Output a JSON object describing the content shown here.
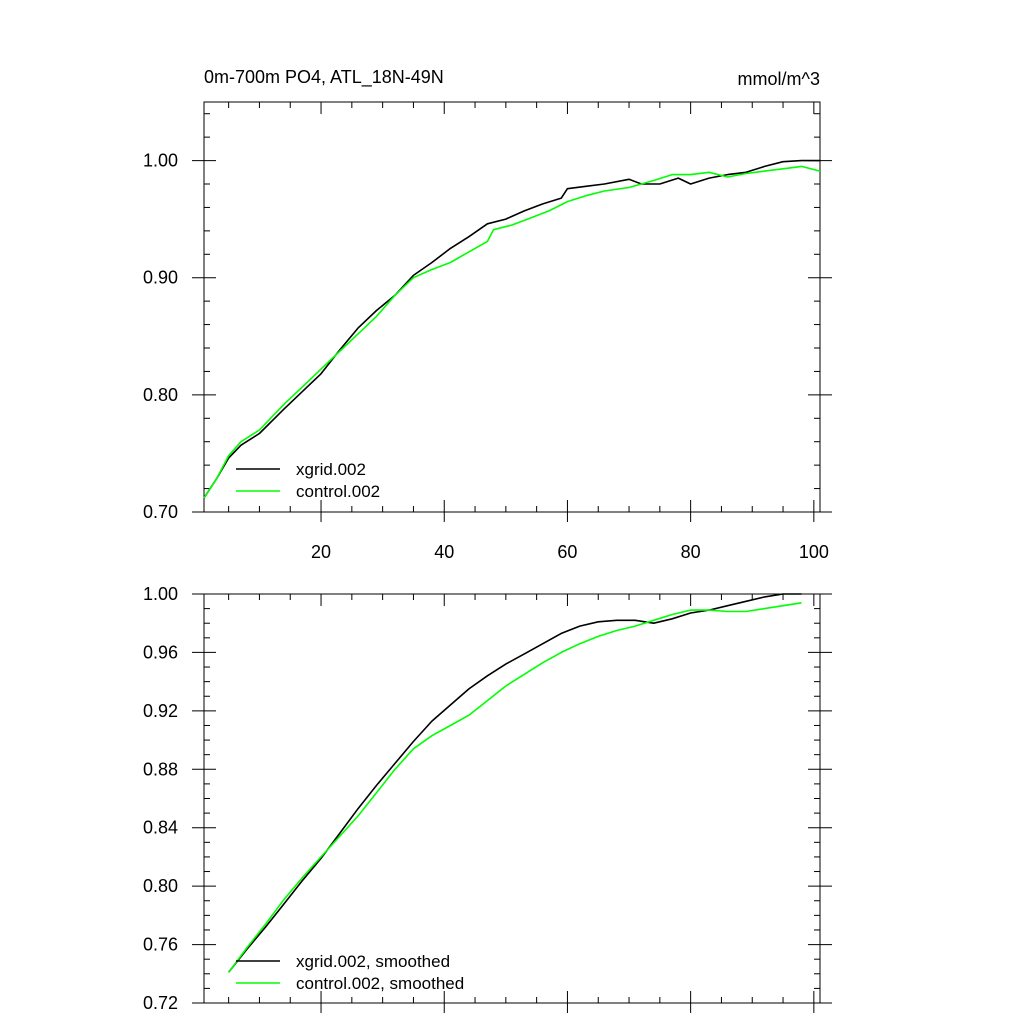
{
  "chart_data": [
    {
      "type": "line",
      "title": "0m-700m PO4, ATL_18N-49N",
      "units": "mmol/m^3",
      "xlim": [
        1,
        101
      ],
      "ylim": [
        0.7,
        1.05
      ],
      "x_ticks": [
        20,
        40,
        60,
        80,
        100
      ],
      "x_tick_labels": [
        "20",
        "40",
        "60",
        "80",
        "100"
      ],
      "y_ticks": [
        0.7,
        0.8,
        0.9,
        1.0
      ],
      "y_tick_labels": [
        "0.70",
        "0.80",
        "0.90",
        "1.00"
      ],
      "legend": "bottom-left",
      "series": [
        {
          "name": "xgrid.002",
          "color": "#000000",
          "points": [
            [
              1,
              0.712
            ],
            [
              3,
              0.728
            ],
            [
              5,
              0.746
            ],
            [
              7,
              0.757
            ],
            [
              10,
              0.767
            ],
            [
              14,
              0.788
            ],
            [
              17,
              0.803
            ],
            [
              20,
              0.818
            ],
            [
              23,
              0.838
            ],
            [
              26,
              0.857
            ],
            [
              29,
              0.872
            ],
            [
              32,
              0.885
            ],
            [
              35,
              0.902
            ],
            [
              38,
              0.913
            ],
            [
              41,
              0.925
            ],
            [
              44,
              0.935
            ],
            [
              47,
              0.946
            ],
            [
              50,
              0.95
            ],
            [
              53,
              0.957
            ],
            [
              56,
              0.963
            ],
            [
              59,
              0.968
            ],
            [
              60,
              0.976
            ],
            [
              63,
              0.978
            ],
            [
              66,
              0.98
            ],
            [
              70,
              0.984
            ],
            [
              72,
              0.98
            ],
            [
              75,
              0.98
            ],
            [
              78,
              0.985
            ],
            [
              80,
              0.98
            ],
            [
              83,
              0.985
            ],
            [
              86,
              0.988
            ],
            [
              89,
              0.99
            ],
            [
              92,
              0.995
            ],
            [
              95,
              0.999
            ],
            [
              98,
              1.0
            ],
            [
              101,
              1.0
            ]
          ]
        },
        {
          "name": "control.002",
          "color": "#00ff00",
          "points": [
            [
              1,
              0.712
            ],
            [
              3,
              0.728
            ],
            [
              5,
              0.748
            ],
            [
              7,
              0.76
            ],
            [
              10,
              0.77
            ],
            [
              14,
              0.792
            ],
            [
              17,
              0.807
            ],
            [
              20,
              0.822
            ],
            [
              23,
              0.837
            ],
            [
              26,
              0.852
            ],
            [
              29,
              0.867
            ],
            [
              32,
              0.885
            ],
            [
              35,
              0.9
            ],
            [
              38,
              0.907
            ],
            [
              41,
              0.913
            ],
            [
              44,
              0.922
            ],
            [
              47,
              0.931
            ],
            [
              48,
              0.941
            ],
            [
              51,
              0.945
            ],
            [
              54,
              0.951
            ],
            [
              57,
              0.957
            ],
            [
              60,
              0.965
            ],
            [
              63,
              0.97
            ],
            [
              66,
              0.974
            ],
            [
              70,
              0.977
            ],
            [
              74,
              0.983
            ],
            [
              77,
              0.988
            ],
            [
              80,
              0.988
            ],
            [
              83,
              0.99
            ],
            [
              86,
              0.986
            ],
            [
              89,
              0.989
            ],
            [
              92,
              0.991
            ],
            [
              95,
              0.993
            ],
            [
              98,
              0.995
            ],
            [
              101,
              0.991
            ]
          ]
        }
      ]
    },
    {
      "type": "line",
      "title": "",
      "xlim": [
        1,
        101
      ],
      "ylim": [
        0.72,
        1.0
      ],
      "x_ticks": [
        20,
        40,
        60,
        80,
        100
      ],
      "y_ticks": [
        0.72,
        0.76,
        0.8,
        0.84,
        0.88,
        0.92,
        0.96,
        1.0
      ],
      "y_tick_labels": [
        "0.72",
        "0.76",
        "0.80",
        "0.84",
        "0.88",
        "0.92",
        "0.96",
        "1.00"
      ],
      "legend": "bottom-left",
      "series": [
        {
          "name": "xgrid.002, smoothed",
          "color": "#000000",
          "points": [
            [
              5,
              0.741
            ],
            [
              8,
              0.757
            ],
            [
              11,
              0.772
            ],
            [
              14,
              0.788
            ],
            [
              17,
              0.804
            ],
            [
              20,
              0.819
            ],
            [
              23,
              0.836
            ],
            [
              26,
              0.853
            ],
            [
              29,
              0.869
            ],
            [
              32,
              0.884
            ],
            [
              35,
              0.899
            ],
            [
              38,
              0.913
            ],
            [
              41,
              0.924
            ],
            [
              44,
              0.935
            ],
            [
              47,
              0.944
            ],
            [
              50,
              0.952
            ],
            [
              53,
              0.959
            ],
            [
              56,
              0.966
            ],
            [
              59,
              0.973
            ],
            [
              62,
              0.978
            ],
            [
              65,
              0.981
            ],
            [
              68,
              0.982
            ],
            [
              71,
              0.982
            ],
            [
              74,
              0.98
            ],
            [
              77,
              0.983
            ],
            [
              80,
              0.987
            ],
            [
              83,
              0.989
            ],
            [
              86,
              0.992
            ],
            [
              89,
              0.995
            ],
            [
              92,
              0.998
            ],
            [
              95,
              1.0
            ],
            [
              98,
              1.0
            ]
          ]
        },
        {
          "name": "control.002, smoothed",
          "color": "#00ff00",
          "points": [
            [
              5,
              0.741
            ],
            [
              8,
              0.758
            ],
            [
              11,
              0.774
            ],
            [
              14,
              0.791
            ],
            [
              17,
              0.806
            ],
            [
              20,
              0.82
            ],
            [
              23,
              0.834
            ],
            [
              26,
              0.848
            ],
            [
              29,
              0.864
            ],
            [
              32,
              0.88
            ],
            [
              35,
              0.894
            ],
            [
              38,
              0.903
            ],
            [
              41,
              0.91
            ],
            [
              44,
              0.917
            ],
            [
              47,
              0.927
            ],
            [
              50,
              0.937
            ],
            [
              53,
              0.945
            ],
            [
              56,
              0.953
            ],
            [
              59,
              0.96
            ],
            [
              62,
              0.966
            ],
            [
              65,
              0.971
            ],
            [
              68,
              0.975
            ],
            [
              71,
              0.978
            ],
            [
              74,
              0.982
            ],
            [
              77,
              0.986
            ],
            [
              80,
              0.989
            ],
            [
              83,
              0.989
            ],
            [
              86,
              0.988
            ],
            [
              89,
              0.988
            ],
            [
              92,
              0.99
            ],
            [
              95,
              0.992
            ],
            [
              98,
              0.994
            ]
          ]
        }
      ]
    }
  ]
}
